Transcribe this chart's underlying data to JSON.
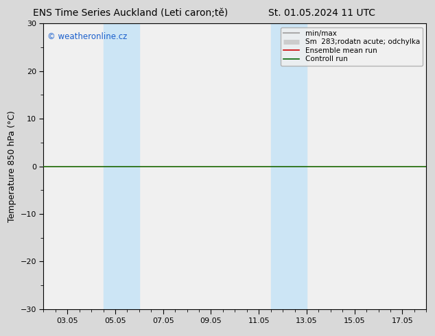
{
  "title_left": "ENS Time Series Auckland (Leti caron;tě)",
  "title_right": "St. 01.05.2024 11 UTC",
  "ylabel": "Temperature 850 hPa (°C)",
  "ylim": [
    -30,
    30
  ],
  "yticks": [
    -30,
    -20,
    -10,
    0,
    10,
    20,
    30
  ],
  "xtick_labels": [
    "03.05",
    "05.05",
    "07.05",
    "09.05",
    "11.05",
    "13.05",
    "15.05",
    "17.05"
  ],
  "xtick_positions": [
    3,
    5,
    7,
    9,
    11,
    13,
    15,
    17
  ],
  "xlim": [
    2.0,
    18.0
  ],
  "shaded_bands": [
    {
      "x_start": 4.5,
      "x_end": 6.0
    },
    {
      "x_start": 11.5,
      "x_end": 13.0
    }
  ],
  "band_color": "#cce5f5",
  "bg_color": "#d9d9d9",
  "plot_bg_color": "#f0f0f0",
  "zero_line_color": "#1a6600",
  "watermark_text": "© weatheronline.cz",
  "watermark_color": "#1a5fcc",
  "legend_fontsize": 7.5,
  "title_fontsize": 10,
  "axis_label_fontsize": 9,
  "legend_items": [
    {
      "label": "min/max",
      "color": "#aaaaaa",
      "lw": 1.5
    },
    {
      "label": "Sm  283;rodatn acute; odchylka",
      "color": "#cccccc",
      "lw": 5
    },
    {
      "label": "Ensemble mean run",
      "color": "#cc0000",
      "lw": 1.2
    },
    {
      "label": "Controll run",
      "color": "#006600",
      "lw": 1.2
    }
  ]
}
